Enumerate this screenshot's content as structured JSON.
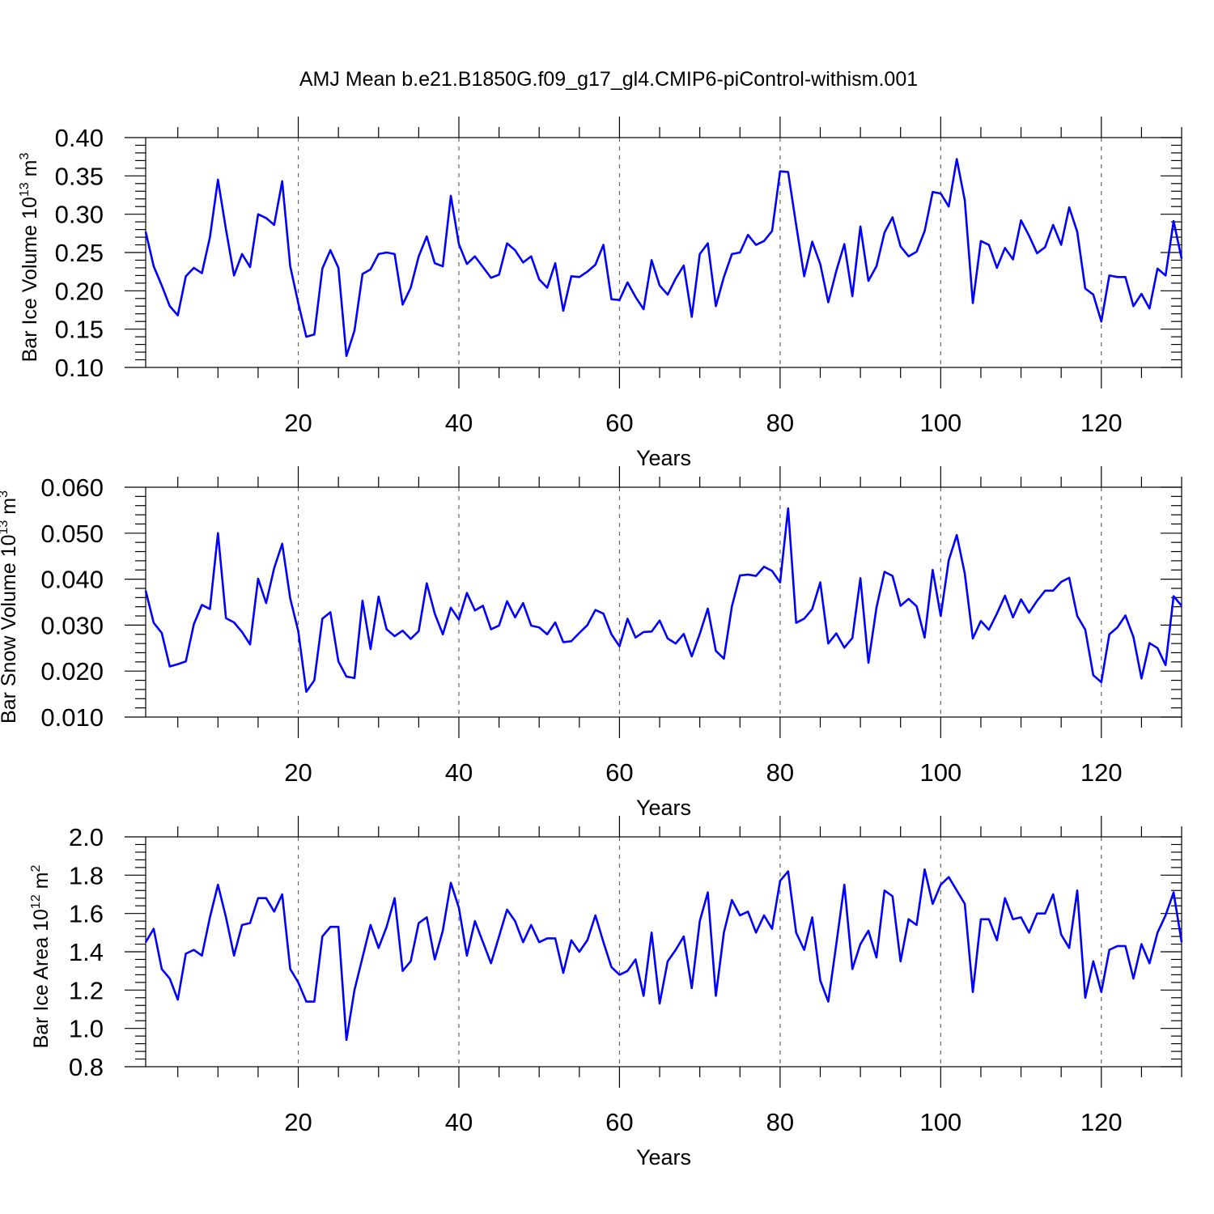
{
  "title": "AMJ Mean b.e21.B1850G.f09_g17_gl4.CMIP6-piControl-withism.001",
  "colors": {
    "line": "#0000ff",
    "grid": "#666666",
    "axis": "#000000"
  },
  "chart_data": [
    {
      "type": "line",
      "xlabel": "Years",
      "ylabel": "Bar Ice Volume 10",
      "ylabel_exp": "13",
      "ylabel_unit": " m",
      "ylabel_unit_exp": "3",
      "xlim": [
        1,
        130
      ],
      "ylim": [
        0.1,
        0.4
      ],
      "xticks": [
        20,
        40,
        60,
        80,
        100,
        120
      ],
      "xtick_labels": [
        "20",
        "40",
        "60",
        "80",
        "100",
        "120"
      ],
      "yticks": [
        0.1,
        0.15,
        0.2,
        0.25,
        0.3,
        0.35,
        0.4
      ],
      "ytick_labels": [
        "0.10",
        "0.15",
        "0.20",
        "0.25",
        "0.30",
        "0.35",
        "0.40"
      ],
      "grid": "dashed vertical at major x ticks",
      "x_start": 1,
      "values": [
        0.277,
        0.232,
        0.207,
        0.18,
        0.168,
        0.219,
        0.23,
        0.223,
        0.27,
        0.345,
        0.28,
        0.22,
        0.248,
        0.231,
        0.3,
        0.295,
        0.286,
        0.343,
        0.232,
        0.184,
        0.14,
        0.143,
        0.229,
        0.253,
        0.23,
        0.115,
        0.148,
        0.222,
        0.228,
        0.248,
        0.25,
        0.248,
        0.182,
        0.204,
        0.245,
        0.271,
        0.236,
        0.232,
        0.324,
        0.261,
        0.235,
        0.245,
        0.231,
        0.217,
        0.221,
        0.262,
        0.253,
        0.237,
        0.245,
        0.215,
        0.204,
        0.236,
        0.174,
        0.219,
        0.218,
        0.225,
        0.234,
        0.26,
        0.189,
        0.188,
        0.211,
        0.192,
        0.176,
        0.24,
        0.207,
        0.195,
        0.216,
        0.233,
        0.166,
        0.248,
        0.262,
        0.18,
        0.218,
        0.248,
        0.25,
        0.273,
        0.26,
        0.265,
        0.278,
        0.356,
        0.355,
        0.286,
        0.219,
        0.264,
        0.235,
        0.185,
        0.226,
        0.261,
        0.193,
        0.284,
        0.213,
        0.232,
        0.276,
        0.296,
        0.258,
        0.245,
        0.251,
        0.278,
        0.329,
        0.327,
        0.31,
        0.372,
        0.318,
        0.184,
        0.265,
        0.26,
        0.23,
        0.256,
        0.241,
        0.292,
        0.272,
        0.249,
        0.257,
        0.286,
        0.26,
        0.309,
        0.277,
        0.203,
        0.195,
        0.16,
        0.22,
        0.218,
        0.218,
        0.18,
        0.196,
        0.177,
        0.229,
        0.22,
        0.291,
        0.242
      ]
    },
    {
      "type": "line",
      "xlabel": "Years",
      "ylabel": "Bar Snow Volume 10",
      "ylabel_exp": "13",
      "ylabel_unit": " m",
      "ylabel_unit_exp": "3",
      "xlim": [
        1,
        130
      ],
      "ylim": [
        0.01,
        0.06
      ],
      "xticks": [
        20,
        40,
        60,
        80,
        100,
        120
      ],
      "xtick_labels": [
        "20",
        "40",
        "60",
        "80",
        "100",
        "120"
      ],
      "yticks": [
        0.01,
        0.02,
        0.03,
        0.04,
        0.05,
        0.06
      ],
      "ytick_labels": [
        "0.010",
        "0.020",
        "0.030",
        "0.040",
        "0.050",
        "0.060"
      ],
      "grid": "dashed vertical at major x ticks",
      "x_start": 1,
      "values": [
        0.0375,
        0.0305,
        0.0283,
        0.021,
        0.0215,
        0.0221,
        0.0302,
        0.0344,
        0.0335,
        0.05,
        0.0315,
        0.0306,
        0.0285,
        0.0258,
        0.0401,
        0.0348,
        0.0424,
        0.0477,
        0.0358,
        0.0287,
        0.0155,
        0.018,
        0.0314,
        0.0328,
        0.0221,
        0.0188,
        0.0185,
        0.0353,
        0.0248,
        0.0362,
        0.0291,
        0.0276,
        0.0288,
        0.027,
        0.0287,
        0.0391,
        0.0325,
        0.028,
        0.0338,
        0.0312,
        0.037,
        0.0332,
        0.0342,
        0.0291,
        0.0299,
        0.0352,
        0.0317,
        0.0348,
        0.0299,
        0.0295,
        0.028,
        0.0306,
        0.0263,
        0.0265,
        0.0283,
        0.03,
        0.0333,
        0.0325,
        0.028,
        0.0254,
        0.0314,
        0.0273,
        0.0285,
        0.0286,
        0.031,
        0.0271,
        0.026,
        0.0281,
        0.0232,
        0.0281,
        0.0336,
        0.0244,
        0.0227,
        0.0341,
        0.0408,
        0.041,
        0.0407,
        0.0427,
        0.0418,
        0.0393,
        0.0554,
        0.0305,
        0.0314,
        0.0335,
        0.0393,
        0.026,
        0.0282,
        0.0251,
        0.0272,
        0.0402,
        0.0218,
        0.0338,
        0.0416,
        0.0407,
        0.0342,
        0.0357,
        0.0341,
        0.0273,
        0.042,
        0.032,
        0.0441,
        0.0496,
        0.0412,
        0.0271,
        0.0309,
        0.029,
        0.0325,
        0.0364,
        0.0317,
        0.0356,
        0.0327,
        0.0353,
        0.0375,
        0.0375,
        0.0394,
        0.0403,
        0.032,
        0.029,
        0.0191,
        0.0176,
        0.028,
        0.0295,
        0.0321,
        0.0274,
        0.0184,
        0.0261,
        0.025,
        0.0213,
        0.0363,
        0.0342
      ]
    },
    {
      "type": "line",
      "xlabel": "Years",
      "ylabel": "Bar Ice Area 10",
      "ylabel_exp": "12",
      "ylabel_unit": " m",
      "ylabel_unit_exp": "2",
      "xlim": [
        1,
        130
      ],
      "ylim": [
        0.8,
        2.0
      ],
      "xticks": [
        20,
        40,
        60,
        80,
        100,
        120
      ],
      "xtick_labels": [
        "20",
        "40",
        "60",
        "80",
        "100",
        "120"
      ],
      "yticks": [
        0.8,
        1.0,
        1.2,
        1.4,
        1.6,
        1.8,
        2.0
      ],
      "ytick_labels": [
        "0.8",
        "1.0",
        "1.2",
        "1.4",
        "1.6",
        "1.8",
        "2.0"
      ],
      "grid": "dashed vertical at major x ticks",
      "x_start": 1,
      "values": [
        1.45,
        1.52,
        1.31,
        1.26,
        1.15,
        1.39,
        1.41,
        1.38,
        1.58,
        1.75,
        1.58,
        1.38,
        1.54,
        1.55,
        1.68,
        1.68,
        1.61,
        1.7,
        1.31,
        1.24,
        1.14,
        1.14,
        1.48,
        1.53,
        1.53,
        0.94,
        1.2,
        1.37,
        1.54,
        1.42,
        1.53,
        1.68,
        1.3,
        1.35,
        1.55,
        1.58,
        1.36,
        1.51,
        1.76,
        1.63,
        1.38,
        1.56,
        1.45,
        1.34,
        1.48,
        1.62,
        1.56,
        1.45,
        1.54,
        1.45,
        1.47,
        1.47,
        1.29,
        1.46,
        1.4,
        1.46,
        1.59,
        1.45,
        1.32,
        1.28,
        1.3,
        1.36,
        1.17,
        1.5,
        1.13,
        1.35,
        1.41,
        1.48,
        1.21,
        1.56,
        1.71,
        1.17,
        1.5,
        1.67,
        1.59,
        1.61,
        1.5,
        1.59,
        1.52,
        1.77,
        1.82,
        1.5,
        1.41,
        1.58,
        1.25,
        1.14,
        1.44,
        1.75,
        1.31,
        1.44,
        1.51,
        1.37,
        1.72,
        1.69,
        1.35,
        1.57,
        1.54,
        1.83,
        1.65,
        1.75,
        1.79,
        1.72,
        1.65,
        1.19,
        1.57,
        1.57,
        1.46,
        1.68,
        1.57,
        1.58,
        1.5,
        1.6,
        1.6,
        1.7,
        1.49,
        1.42,
        1.72,
        1.16,
        1.35,
        1.19,
        1.41,
        1.43,
        1.43,
        1.26,
        1.44,
        1.34,
        1.5,
        1.59,
        1.71,
        1.45
      ]
    }
  ]
}
